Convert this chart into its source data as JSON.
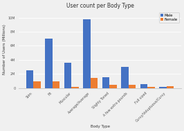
{
  "title": "User count per Body Type",
  "xlabel": "Body Type",
  "ylabel": "Number of Users (Millions)",
  "categories": [
    "Slim",
    "Fit",
    "Muscular",
    "Average/Average",
    "Slighly Toned",
    "A few extra pounds",
    "Full sized",
    "Curvy/Voluptuous/Curvy"
  ],
  "male_values": [
    2500000,
    7000000,
    3600000,
    9800000,
    1500000,
    3000000,
    600000,
    200000
  ],
  "female_values": [
    900000,
    900000,
    200000,
    1400000,
    500000,
    500000,
    150000,
    300000
  ],
  "male_color": "#4472C4",
  "female_color": "#ED7D31",
  "ylim": [
    0,
    11000000
  ],
  "yticks": [
    0,
    2000000,
    4000000,
    6000000,
    8000000,
    10000000
  ],
  "ytick_labels": [
    "0",
    "2M",
    "4M",
    "6M",
    "8M",
    "10M"
  ],
  "legend_labels": [
    "Male",
    "Female"
  ],
  "background_color": "#f0f0f0",
  "plot_bg_color": "#f0f0f0",
  "bar_width": 0.38,
  "title_fontsize": 5.5,
  "axis_label_fontsize": 4.0,
  "tick_fontsize": 3.5,
  "legend_fontsize": 3.8
}
